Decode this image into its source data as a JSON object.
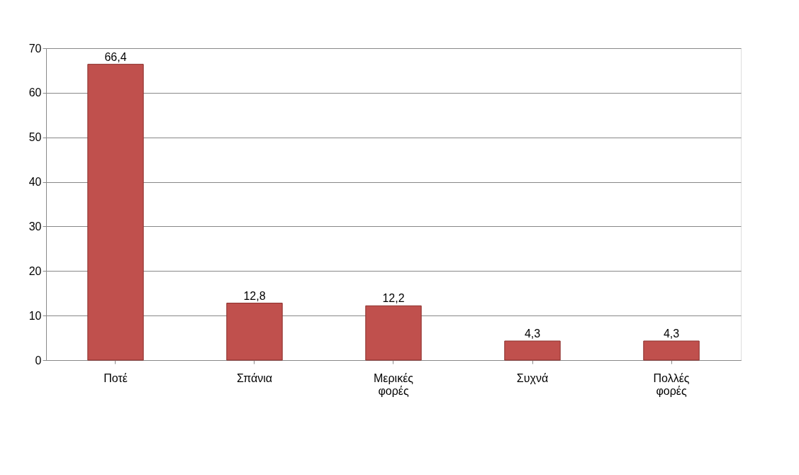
{
  "chart_data": {
    "type": "bar",
    "categories": [
      "Ποτέ",
      "Σπάνια",
      "Μερικές φορές",
      "Συχνά",
      "Πολλές φορές"
    ],
    "values": [
      66.4,
      12.8,
      12.2,
      4.3,
      4.3
    ],
    "value_labels": [
      "66,4",
      "12,8",
      "12,2",
      "4,3",
      "4,3"
    ],
    "color": "#c0504d",
    "ylim": [
      0,
      70
    ],
    "yticks": [
      0,
      10,
      20,
      30,
      40,
      50,
      60,
      70
    ],
    "grid": "y"
  }
}
